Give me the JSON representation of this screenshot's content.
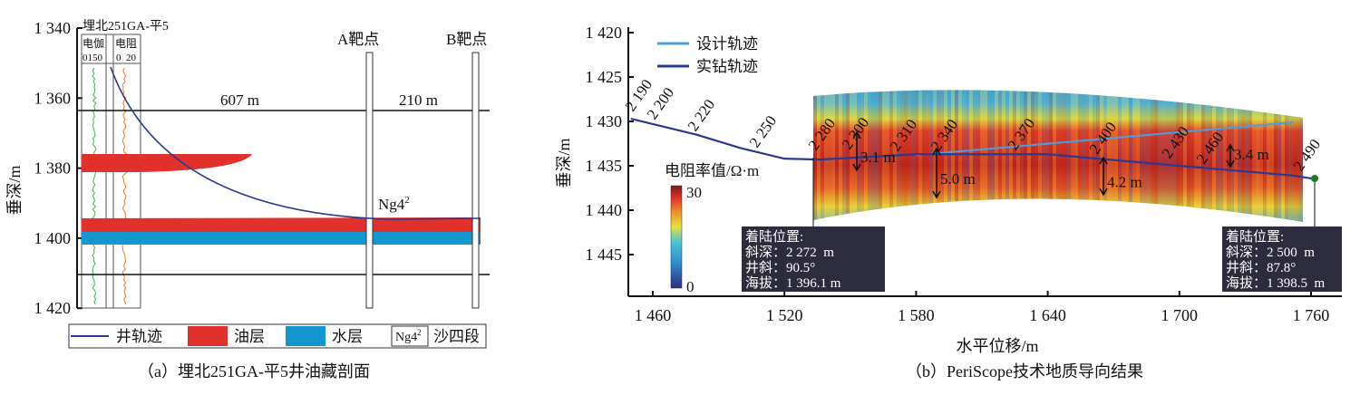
{
  "left": {
    "well_name": "埋北251GA-平5",
    "log_tracks": [
      {
        "name": "电伽",
        "scale": "0150"
      },
      {
        "name": "电阻",
        "scale": "0  20"
      }
    ],
    "y_ticks": [
      "1 340",
      "1 360",
      "1 380",
      "1 400",
      "1 420"
    ],
    "y_label": "垂深/m",
    "target_a": "A靶点",
    "target_b": "B靶点",
    "dist1": "607 m",
    "dist2": "210 m",
    "layer": "Ng4",
    "layer_sup": "2",
    "legend": {
      "well": "井轨迹",
      "oil": "油层",
      "water": "水层",
      "seg_box": "Ng4",
      "seg_sup": "2",
      "seg": "沙四段"
    },
    "caption": "（a）埋北251GA-平5井油藏剖面",
    "colors": {
      "oil": "#e0312d",
      "water": "#1496cf",
      "well": "#2b3990"
    }
  },
  "chart_data": {
    "type": "line",
    "title": "（b）PeriScope技术地质导向结果",
    "xlabel": "水平位移/m",
    "ylabel": "垂深/m",
    "xlim": [
      1450,
      1775
    ],
    "ylim": [
      1420,
      1450
    ],
    "x_ticks": [
      "1 460",
      "1 520",
      "1 580",
      "1 640",
      "1 700",
      "1 760"
    ],
    "y_ticks": [
      "1 420",
      "1 425",
      "1 430",
      "1 435",
      "1 440",
      "1 445"
    ],
    "legend": [
      "设计轨迹",
      "实钻轨迹"
    ],
    "series": [
      {
        "name": "设计轨迹",
        "color": "#4a9fdc",
        "x": [
          1580,
          1752
        ],
        "y": [
          1433.8,
          1430.1
        ]
      },
      {
        "name": "实钻轨迹",
        "color": "#2b3990",
        "x": [
          1450,
          1480,
          1500,
          1520,
          1536,
          1580,
          1640,
          1700,
          1752,
          1762
        ],
        "y": [
          1429.7,
          1431.5,
          1433,
          1434.2,
          1434.3,
          1433.7,
          1433.7,
          1435,
          1436.1,
          1436.5
        ]
      }
    ],
    "depth_markers": [
      "2 190",
      "2 200",
      "2 220",
      "2 250",
      "2 280",
      "2 300",
      "2 310",
      "2 340",
      "2 370",
      "2 400",
      "2 430",
      "2 460",
      "2 490"
    ],
    "thickness": [
      "3.1 m",
      "5.0 m",
      "4.2 m",
      "3.4 m"
    ],
    "colorbar": {
      "label": "电阻率值/Ω·m",
      "min": "0",
      "max": "30"
    },
    "landing_start": {
      "title": "着陆位置:",
      "md": "斜深：2 272  m",
      "inc": "井斜：90.5°",
      "elev": "海拔：1 396.1 m"
    },
    "landing_end": {
      "title": "着陆位置:",
      "md": "斜深：2 500  m",
      "inc": "井斜：87.8°",
      "elev": "海拔：1 398.5  m"
    }
  }
}
